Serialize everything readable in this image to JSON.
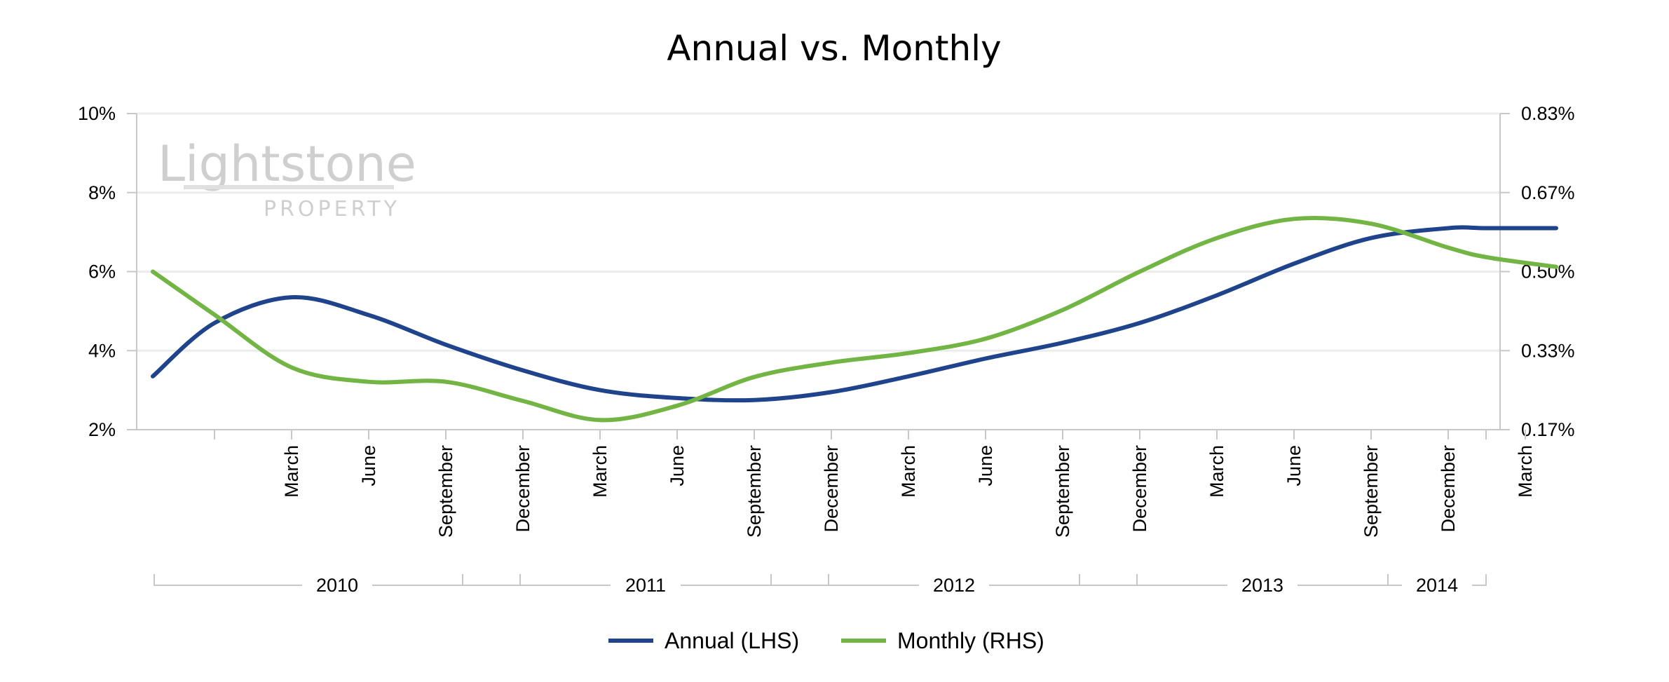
{
  "chart_data": {
    "type": "line",
    "title": "Annual vs. Monthly",
    "watermark": {
      "main": "Lightstone",
      "sub": "PROPERTY"
    },
    "categories": [
      "",
      "March",
      "June",
      "September",
      "December",
      "March",
      "June",
      "September",
      "December",
      "March",
      "June",
      "September",
      "December",
      "March",
      "June",
      "September",
      "December",
      "March",
      ""
    ],
    "years": [
      {
        "label": "2010",
        "start": 0,
        "end": 4
      },
      {
        "label": "2011",
        "start": 4,
        "end": 8
      },
      {
        "label": "2012",
        "start": 8,
        "end": 12
      },
      {
        "label": "2013",
        "start": 12,
        "end": 16
      },
      {
        "label": "2014",
        "start": 16,
        "end": 17.5
      }
    ],
    "y_left": {
      "ticks": [
        "10%",
        "8%",
        "6%",
        "4%",
        "2%"
      ],
      "min": 2,
      "max": 10
    },
    "y_right": {
      "ticks": [
        "0.83%",
        "0.67%",
        "0.50%",
        "0.33%",
        "0.17%"
      ],
      "min": 0.17,
      "max": 0.83
    },
    "grid": true,
    "legend_position": "bottom",
    "series": [
      {
        "name": "Annual (LHS)",
        "axis": "left",
        "color": "#1f448c",
        "x": [
          -0.8,
          0,
          1,
          2,
          3,
          4,
          5,
          6,
          7,
          8,
          9,
          10,
          11,
          12,
          13,
          14,
          15,
          16,
          16.5,
          17.4
        ],
        "values": [
          3.35,
          4.7,
          5.35,
          4.9,
          4.15,
          3.5,
          3.0,
          2.8,
          2.75,
          2.95,
          3.35,
          3.8,
          4.2,
          4.7,
          5.4,
          6.2,
          6.85,
          7.1,
          7.1,
          7.1
        ]
      },
      {
        "name": "Monthly (RHS)",
        "axis": "right",
        "color": "#72b544",
        "x": [
          -0.8,
          0,
          1,
          2,
          3,
          4,
          5,
          6,
          7,
          8,
          9,
          10,
          11,
          12,
          13,
          14,
          15,
          16,
          16.5,
          17.4
        ],
        "values": [
          0.5,
          0.41,
          0.3,
          0.27,
          0.27,
          0.23,
          0.19,
          0.22,
          0.28,
          0.31,
          0.33,
          0.36,
          0.42,
          0.5,
          0.57,
          0.61,
          0.6,
          0.55,
          0.53,
          0.51
        ]
      }
    ]
  }
}
